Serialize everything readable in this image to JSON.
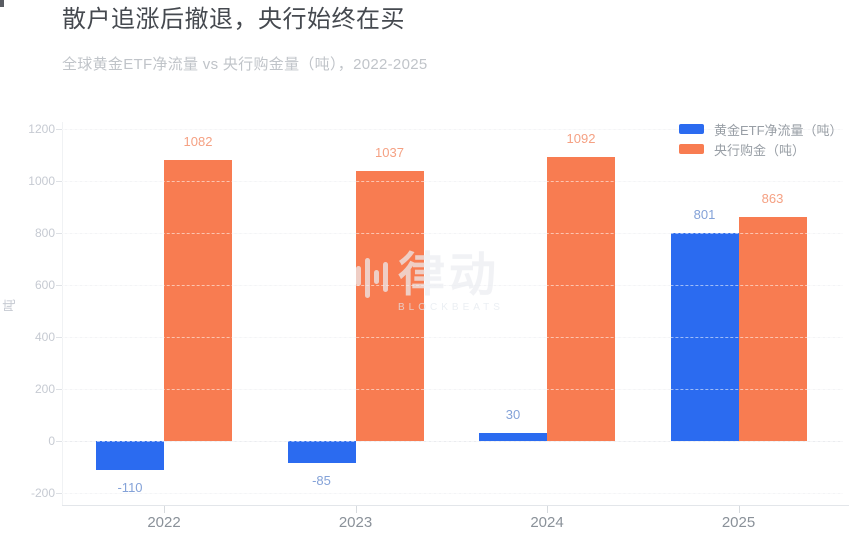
{
  "header": {
    "title": "散户追涨后撤退，央行始终在买",
    "subtitle": "全球黄金ETF净流量 vs 央行购金量（吨），2022-2025"
  },
  "chart_data": {
    "type": "bar",
    "categories": [
      "2022",
      "2023",
      "2024",
      "2025"
    ],
    "series": [
      {
        "name": "黄金ETF净流量（吨）",
        "values": [
          -110,
          -85,
          30,
          801
        ],
        "color": "#2b6bf0",
        "label_color": "#84a2d8"
      },
      {
        "name": "央行购金（吨）",
        "values": [
          1082,
          1037,
          1092,
          863
        ],
        "color": "#f87c51",
        "label_color": "#f5a183"
      }
    ],
    "ylabel": "吨",
    "yticks": [
      -200,
      0,
      200,
      400,
      600,
      800,
      1000,
      1200
    ],
    "ylim": [
      -250,
      1250
    ],
    "grid": true,
    "legend_position": "top-right"
  },
  "watermark": {
    "text": "律动",
    "subtext": "BLOCKBEATS"
  }
}
